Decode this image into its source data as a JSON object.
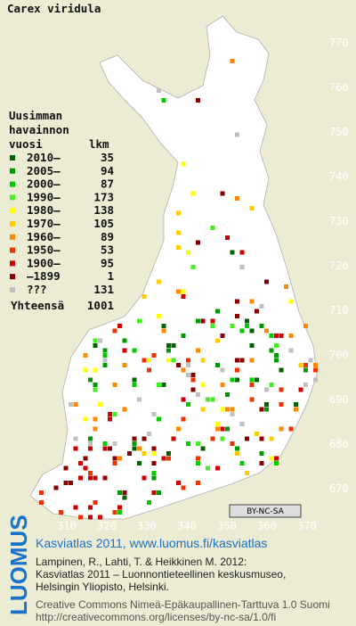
{
  "title": "Carex viridula",
  "legend": {
    "heading": [
      "Uusimman",
      "havainnon"
    ],
    "col_year": "vuosi",
    "col_count": "lkm",
    "rows": [
      {
        "label": "2010–",
        "count": 35,
        "color": "#006400"
      },
      {
        "label": "2005–",
        "count": 94,
        "color": "#009900"
      },
      {
        "label": "2000–",
        "count": 87,
        "color": "#00cc00"
      },
      {
        "label": "1990–",
        "count": 173,
        "color": "#44ee22"
      },
      {
        "label": "1980–",
        "count": 138,
        "color": "#ffff00"
      },
      {
        "label": "1970–",
        "count": 105,
        "color": "#ffcc00"
      },
      {
        "label": "1960–",
        "count": 89,
        "color": "#ff8800"
      },
      {
        "label": "1950–",
        "count": 53,
        "color": "#ee3300"
      },
      {
        "label": "1900–",
        "count": 95,
        "color": "#cc0000"
      },
      {
        "label": "–1899",
        "count": 1,
        "color": "#880000"
      },
      {
        "label": "???",
        "count": 131,
        "color": "#c0c0c0"
      }
    ],
    "total_label": "Yhteensä",
    "total": 1001
  },
  "x_axis": {
    "ticks": [
      310,
      320,
      330,
      340,
      350,
      360,
      370
    ]
  },
  "y_axis": {
    "ticks": [
      670,
      680,
      690,
      700,
      710,
      720,
      730,
      740,
      750,
      760,
      770
    ]
  },
  "license_badge": "BY-NC-SA",
  "side_logo": "LUOMUS",
  "footer": {
    "headline": "Kasviatlas 2011, www.luomus.fi/kasviatlas",
    "citation": [
      "Lampinen, R., Lahti, T. & Heikkinen M. 2012:",
      "Kasviatlas 2011 – Luonnontieteellinen keskusmuseo,",
      "Helsingin Yliopisto, Helsinki."
    ],
    "license": [
      "Creative Commons Nimeä-Epäkaupallinen-Tarttuva 1.0 Suomi",
      "http://creativecommons.org/licenses/by-nc-sa/1.0/fi"
    ]
  }
}
